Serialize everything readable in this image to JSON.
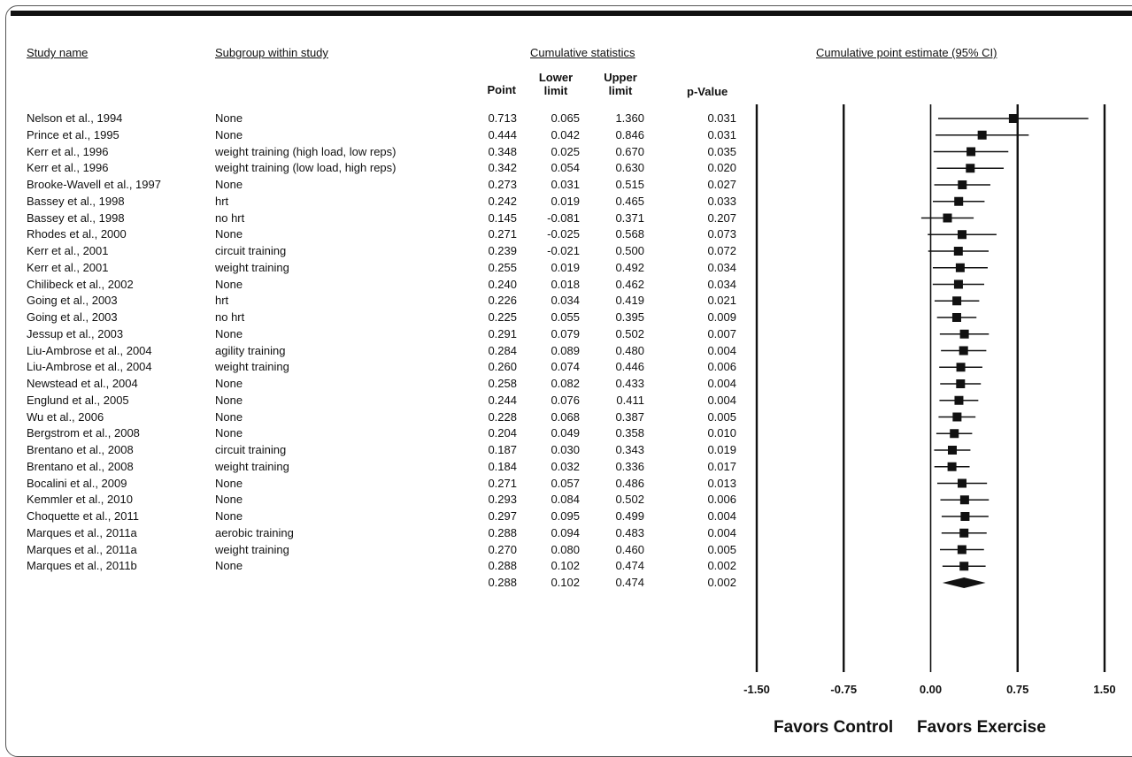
{
  "headers": {
    "study": "Study name",
    "subgroup": "Subgroup within study",
    "cumulative": "Cumulative statistics",
    "plot": "Cumulative point estimate (95% CI)",
    "point": "Point",
    "lower": "Lower limit",
    "upper": "Upper limit",
    "pvalue": "p-Value"
  },
  "favors": {
    "left": "Favors Control",
    "right": "Favors Exercise"
  },
  "rows": [
    {
      "study": "Nelson et al., 1994",
      "subgroup": "None",
      "point": "0.713",
      "lower": "0.065",
      "upper": "1.360",
      "p": "0.031"
    },
    {
      "study": "Prince et al., 1995",
      "subgroup": "None",
      "point": "0.444",
      "lower": "0.042",
      "upper": "0.846",
      "p": "0.031"
    },
    {
      "study": "Kerr et al., 1996",
      "subgroup": "weight training (high load, low reps)",
      "point": "0.348",
      "lower": "0.025",
      "upper": "0.670",
      "p": "0.035"
    },
    {
      "study": "Kerr et al., 1996",
      "subgroup": "weight training (low load, high reps)",
      "point": "0.342",
      "lower": "0.054",
      "upper": "0.630",
      "p": "0.020"
    },
    {
      "study": "Brooke-Wavell et al., 1997",
      "subgroup": "None",
      "point": "0.273",
      "lower": "0.031",
      "upper": "0.515",
      "p": "0.027"
    },
    {
      "study": "Bassey et al., 1998",
      "subgroup": "hrt",
      "point": "0.242",
      "lower": "0.019",
      "upper": "0.465",
      "p": "0.033"
    },
    {
      "study": "Bassey et al., 1998",
      "subgroup": "no hrt",
      "point": "0.145",
      "lower": "-0.081",
      "upper": "0.371",
      "p": "0.207"
    },
    {
      "study": "Rhodes et al., 2000",
      "subgroup": "None",
      "point": "0.271",
      "lower": "-0.025",
      "upper": "0.568",
      "p": "0.073"
    },
    {
      "study": "Kerr et al., 2001",
      "subgroup": "circuit training",
      "point": "0.239",
      "lower": "-0.021",
      "upper": "0.500",
      "p": "0.072"
    },
    {
      "study": "Kerr et al., 2001",
      "subgroup": "weight training",
      "point": "0.255",
      "lower": "0.019",
      "upper": "0.492",
      "p": "0.034"
    },
    {
      "study": "Chilibeck et al., 2002",
      "subgroup": "None",
      "point": "0.240",
      "lower": "0.018",
      "upper": "0.462",
      "p": "0.034"
    },
    {
      "study": "Going et al., 2003",
      "subgroup": "hrt",
      "point": "0.226",
      "lower": "0.034",
      "upper": "0.419",
      "p": "0.021"
    },
    {
      "study": "Going et al., 2003",
      "subgroup": "no hrt",
      "point": "0.225",
      "lower": "0.055",
      "upper": "0.395",
      "p": "0.009"
    },
    {
      "study": "Jessup et al., 2003",
      "subgroup": "None",
      "point": "0.291",
      "lower": "0.079",
      "upper": "0.502",
      "p": "0.007"
    },
    {
      "study": "Liu-Ambrose et al., 2004",
      "subgroup": "agility training",
      "point": "0.284",
      "lower": "0.089",
      "upper": "0.480",
      "p": "0.004"
    },
    {
      "study": "Liu-Ambrose et al., 2004",
      "subgroup": "weight training",
      "point": "0.260",
      "lower": "0.074",
      "upper": "0.446",
      "p": "0.006"
    },
    {
      "study": "Newstead et al., 2004",
      "subgroup": "None",
      "point": "0.258",
      "lower": "0.082",
      "upper": "0.433",
      "p": "0.004"
    },
    {
      "study": "Englund et al., 2005",
      "subgroup": "None",
      "point": "0.244",
      "lower": "0.076",
      "upper": "0.411",
      "p": "0.004"
    },
    {
      "study": "Wu et al., 2006",
      "subgroup": "None",
      "point": "0.228",
      "lower": "0.068",
      "upper": "0.387",
      "p": "0.005"
    },
    {
      "study": "Bergstrom et al., 2008",
      "subgroup": "None",
      "point": "0.204",
      "lower": "0.049",
      "upper": "0.358",
      "p": "0.010"
    },
    {
      "study": "Brentano et al., 2008",
      "subgroup": "circuit training",
      "point": "0.187",
      "lower": "0.030",
      "upper": "0.343",
      "p": "0.019"
    },
    {
      "study": "Brentano et al., 2008",
      "subgroup": "weight training",
      "point": "0.184",
      "lower": "0.032",
      "upper": "0.336",
      "p": "0.017"
    },
    {
      "study": "Bocalini et al., 2009",
      "subgroup": "None",
      "point": "0.271",
      "lower": "0.057",
      "upper": "0.486",
      "p": "0.013"
    },
    {
      "study": "Kemmler et al., 2010",
      "subgroup": "None",
      "point": "0.293",
      "lower": "0.084",
      "upper": "0.502",
      "p": "0.006"
    },
    {
      "study": "Choquette et al., 2011",
      "subgroup": "None",
      "point": "0.297",
      "lower": "0.095",
      "upper": "0.499",
      "p": "0.004"
    },
    {
      "study": "Marques et al., 2011a",
      "subgroup": "aerobic training",
      "point": "0.288",
      "lower": "0.094",
      "upper": "0.483",
      "p": "0.004"
    },
    {
      "study": "Marques et al., 2011a",
      "subgroup": "weight training",
      "point": "0.270",
      "lower": "0.080",
      "upper": "0.460",
      "p": "0.005"
    },
    {
      "study": "Marques et al., 2011b",
      "subgroup": "None",
      "point": "0.288",
      "lower": "0.102",
      "upper": "0.474",
      "p": "0.002"
    }
  ],
  "summary": {
    "point": "0.288",
    "lower": "0.102",
    "upper": "0.474",
    "p": "0.002"
  },
  "chart_data": {
    "type": "forest",
    "title": "",
    "xlabel": "",
    "ylabel": "",
    "xlim": [
      -1.5,
      1.5
    ],
    "xticks": [
      -1.5,
      -0.75,
      0.0,
      0.75,
      1.5
    ],
    "xtick_labels": [
      "-1.50",
      "-0.75",
      "0.00",
      "0.75",
      "1.50"
    ],
    "favors_left": "Favors Control",
    "favors_right": "Favors Exercise",
    "points": [
      {
        "est": 0.713,
        "lo": 0.065,
        "hi": 1.36
      },
      {
        "est": 0.444,
        "lo": 0.042,
        "hi": 0.846
      },
      {
        "est": 0.348,
        "lo": 0.025,
        "hi": 0.67
      },
      {
        "est": 0.342,
        "lo": 0.054,
        "hi": 0.63
      },
      {
        "est": 0.273,
        "lo": 0.031,
        "hi": 0.515
      },
      {
        "est": 0.242,
        "lo": 0.019,
        "hi": 0.465
      },
      {
        "est": 0.145,
        "lo": -0.081,
        "hi": 0.371
      },
      {
        "est": 0.271,
        "lo": -0.025,
        "hi": 0.568
      },
      {
        "est": 0.239,
        "lo": -0.021,
        "hi": 0.5
      },
      {
        "est": 0.255,
        "lo": 0.019,
        "hi": 0.492
      },
      {
        "est": 0.24,
        "lo": 0.018,
        "hi": 0.462
      },
      {
        "est": 0.226,
        "lo": 0.034,
        "hi": 0.419
      },
      {
        "est": 0.225,
        "lo": 0.055,
        "hi": 0.395
      },
      {
        "est": 0.291,
        "lo": 0.079,
        "hi": 0.502
      },
      {
        "est": 0.284,
        "lo": 0.089,
        "hi": 0.48
      },
      {
        "est": 0.26,
        "lo": 0.074,
        "hi": 0.446
      },
      {
        "est": 0.258,
        "lo": 0.082,
        "hi": 0.433
      },
      {
        "est": 0.244,
        "lo": 0.076,
        "hi": 0.411
      },
      {
        "est": 0.228,
        "lo": 0.068,
        "hi": 0.387
      },
      {
        "est": 0.204,
        "lo": 0.049,
        "hi": 0.358
      },
      {
        "est": 0.187,
        "lo": 0.03,
        "hi": 0.343
      },
      {
        "est": 0.184,
        "lo": 0.032,
        "hi": 0.336
      },
      {
        "est": 0.271,
        "lo": 0.057,
        "hi": 0.486
      },
      {
        "est": 0.293,
        "lo": 0.084,
        "hi": 0.502
      },
      {
        "est": 0.297,
        "lo": 0.095,
        "hi": 0.499
      },
      {
        "est": 0.288,
        "lo": 0.094,
        "hi": 0.483
      },
      {
        "est": 0.27,
        "lo": 0.08,
        "hi": 0.46
      },
      {
        "est": 0.288,
        "lo": 0.102,
        "hi": 0.474
      }
    ],
    "summary": {
      "est": 0.288,
      "lo": 0.102,
      "hi": 0.474
    }
  }
}
